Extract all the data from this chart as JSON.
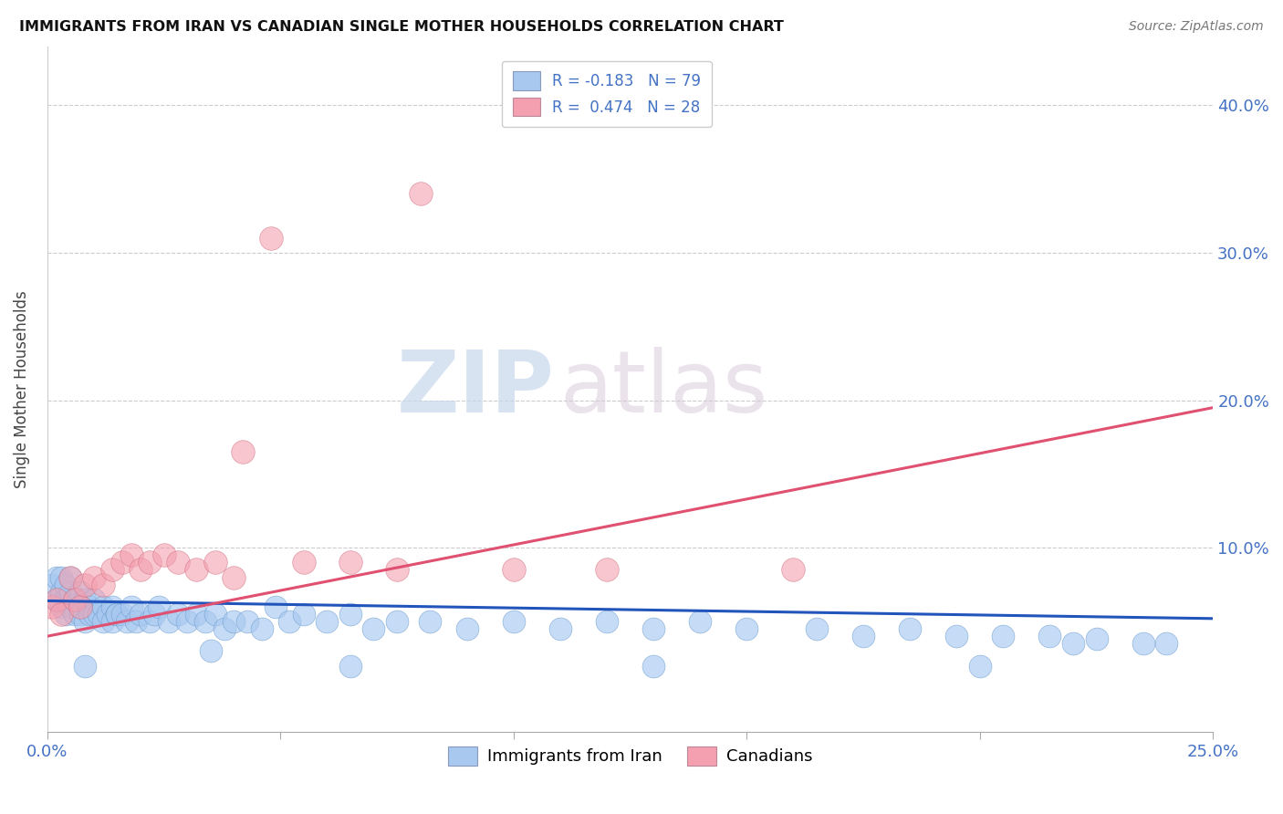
{
  "title": "IMMIGRANTS FROM IRAN VS CANADIAN SINGLE MOTHER HOUSEHOLDS CORRELATION CHART",
  "source": "Source: ZipAtlas.com",
  "ylabel": "Single Mother Households",
  "legend_blue_label": "Immigrants from Iran",
  "legend_pink_label": "Canadians",
  "R_blue": -0.183,
  "N_blue": 79,
  "R_pink": 0.474,
  "N_pink": 28,
  "xlim": [
    0.0,
    0.25
  ],
  "ylim": [
    -0.025,
    0.44
  ],
  "yticks": [
    0.0,
    0.1,
    0.2,
    0.3,
    0.4
  ],
  "ytick_labels": [
    "",
    "10.0%",
    "20.0%",
    "30.0%",
    "40.0%"
  ],
  "xticks": [
    0.0,
    0.05,
    0.1,
    0.15,
    0.2,
    0.25
  ],
  "xtick_labels": [
    "0.0%",
    "",
    "",
    "",
    "",
    "25.0%"
  ],
  "blue_color": "#A8C8F0",
  "pink_color": "#F4A0B0",
  "blue_line_color": "#2255BB",
  "pink_line_color": "#E05070",
  "watermark_zip": "ZIP",
  "watermark_atlas": "atlas",
  "title_color": "#111111",
  "axis_color": "#4472C4",
  "blue_pts_x": [
    0.001,
    0.002,
    0.002,
    0.003,
    0.003,
    0.003,
    0.004,
    0.004,
    0.004,
    0.005,
    0.005,
    0.005,
    0.006,
    0.006,
    0.007,
    0.007,
    0.007,
    0.008,
    0.008,
    0.009,
    0.009,
    0.01,
    0.01,
    0.011,
    0.012,
    0.012,
    0.013,
    0.014,
    0.014,
    0.015,
    0.015,
    0.016,
    0.017,
    0.018,
    0.019,
    0.02,
    0.022,
    0.023,
    0.024,
    0.026,
    0.028,
    0.03,
    0.032,
    0.034,
    0.036,
    0.038,
    0.04,
    0.043,
    0.046,
    0.049,
    0.052,
    0.055,
    0.06,
    0.065,
    0.07,
    0.075,
    0.082,
    0.09,
    0.1,
    0.11,
    0.12,
    0.13,
    0.14,
    0.15,
    0.165,
    0.175,
    0.185,
    0.195,
    0.205,
    0.215,
    0.225,
    0.235,
    0.24,
    0.008,
    0.035,
    0.065,
    0.13,
    0.2,
    0.22
  ],
  "blue_pts_y": [
    0.075,
    0.065,
    0.08,
    0.06,
    0.07,
    0.08,
    0.055,
    0.065,
    0.075,
    0.06,
    0.07,
    0.08,
    0.055,
    0.065,
    0.06,
    0.07,
    0.055,
    0.065,
    0.05,
    0.06,
    0.055,
    0.065,
    0.055,
    0.055,
    0.06,
    0.05,
    0.055,
    0.06,
    0.05,
    0.055,
    0.055,
    0.055,
    0.05,
    0.06,
    0.05,
    0.055,
    0.05,
    0.055,
    0.06,
    0.05,
    0.055,
    0.05,
    0.055,
    0.05,
    0.055,
    0.045,
    0.05,
    0.05,
    0.045,
    0.06,
    0.05,
    0.055,
    0.05,
    0.055,
    0.045,
    0.05,
    0.05,
    0.045,
    0.05,
    0.045,
    0.05,
    0.045,
    0.05,
    0.045,
    0.045,
    0.04,
    0.045,
    0.04,
    0.04,
    0.04,
    0.038,
    0.035,
    0.035,
    0.02,
    0.03,
    0.02,
    0.02,
    0.02,
    0.035
  ],
  "pink_pts_x": [
    0.001,
    0.002,
    0.003,
    0.005,
    0.006,
    0.007,
    0.008,
    0.01,
    0.012,
    0.014,
    0.016,
    0.018,
    0.02,
    0.022,
    0.025,
    0.028,
    0.032,
    0.036,
    0.042,
    0.048,
    0.055,
    0.065,
    0.08,
    0.1,
    0.12,
    0.16,
    0.04,
    0.075
  ],
  "pink_pts_y": [
    0.06,
    0.065,
    0.055,
    0.08,
    0.065,
    0.06,
    0.075,
    0.08,
    0.075,
    0.085,
    0.09,
    0.095,
    0.085,
    0.09,
    0.095,
    0.09,
    0.085,
    0.09,
    0.165,
    0.31,
    0.09,
    0.09,
    0.34,
    0.085,
    0.085,
    0.085,
    0.08,
    0.085
  ],
  "blue_trend": [
    0.064,
    0.052
  ],
  "pink_trend": [
    0.04,
    0.195
  ]
}
